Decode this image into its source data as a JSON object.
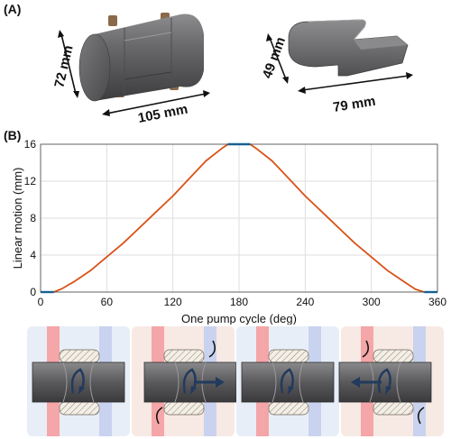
{
  "panels": {
    "a_label": "(A)",
    "b_label": "(B)"
  },
  "dimensions": {
    "cylinder_height": "72 mm",
    "cylinder_length": "105 mm",
    "piston_height": "49 mm",
    "piston_length": "79 mm"
  },
  "chart_data": {
    "type": "line",
    "xlabel": "One pump cycle (deg)",
    "ylabel": "Linear motion (mm)",
    "xlim": [
      0,
      360
    ],
    "ylim": [
      0,
      16
    ],
    "xticks": [
      0,
      60,
      120,
      180,
      240,
      300,
      360
    ],
    "yticks": [
      0,
      4,
      8,
      12,
      16
    ],
    "grid": true,
    "series": [
      {
        "color": "#d95319",
        "x": [
          12,
          20,
          30,
          45,
          60,
          75,
          90,
          105,
          120,
          135,
          150,
          165,
          170,
          190,
          195,
          210,
          225,
          240,
          255,
          270,
          285,
          300,
          315,
          330,
          340,
          348
        ],
        "values": [
          0,
          0.4,
          1.1,
          2.3,
          3.8,
          5.3,
          7.0,
          8.7,
          10.4,
          12.3,
          14.2,
          15.6,
          16,
          16,
          15.6,
          14.2,
          12.3,
          10.4,
          8.7,
          7.0,
          5.3,
          3.8,
          2.3,
          1.1,
          0.3,
          0
        ]
      },
      {
        "color": "#0072bd",
        "x": [
          0,
          12
        ],
        "values": [
          0,
          0
        ]
      },
      {
        "color": "#0072bd",
        "x": [
          170,
          190
        ],
        "values": [
          16,
          16
        ]
      },
      {
        "color": "#0072bd",
        "x": [
          348,
          360
        ],
        "values": [
          0,
          0
        ]
      }
    ]
  },
  "colors": {
    "cycle_line": "#d95319",
    "dwell_line": "#0072bd",
    "stage_bg_idle": "#e8eef7",
    "stage_bg_pump": "#f7e9e4",
    "left_channel": "#f4a6a8",
    "right_channel": "#c9d3ef"
  },
  "stages": [
    {
      "name": "dwell-rotate"
    },
    {
      "name": "stroke-right"
    },
    {
      "name": "dwell-rotate"
    },
    {
      "name": "stroke-left"
    }
  ]
}
